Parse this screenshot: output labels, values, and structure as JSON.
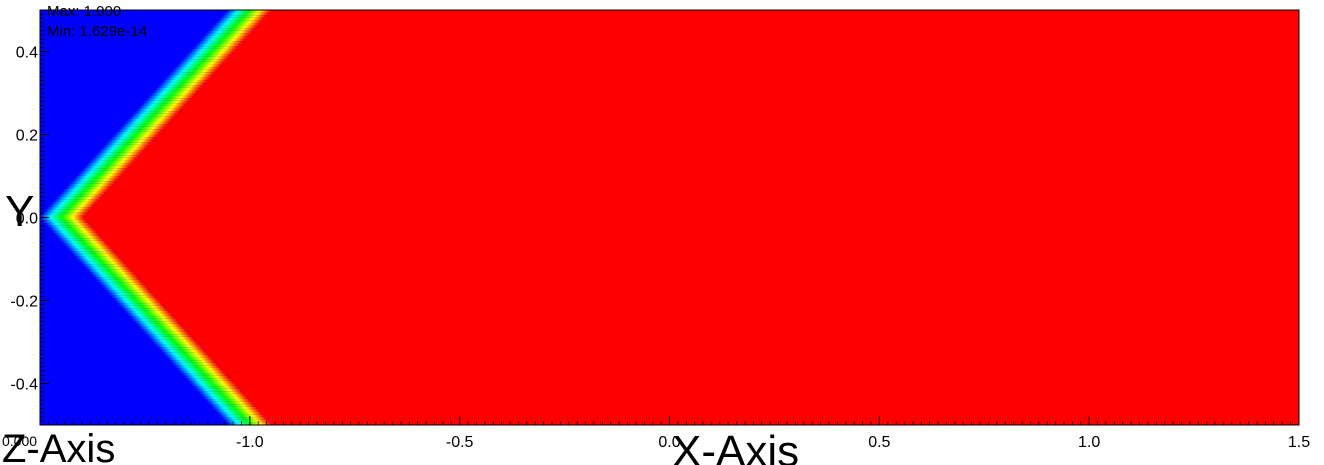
{
  "info": {
    "max_text": "Max: 1.000",
    "min_text": "Min: 1.629e-14",
    "corner_label": "0.000"
  },
  "chart_data": {
    "type": "heatmap",
    "xlabel": "X-Axis",
    "ylabel": "Y",
    "zlabel": "Z-Axis",
    "xlim": [
      -1.5,
      1.5
    ],
    "ylim": [
      -0.5,
      0.5
    ],
    "x_ticks": [
      "-1.0",
      "-0.5",
      "0.0",
      "0.5",
      "1.0",
      "1.5"
    ],
    "x_tick_values": [
      -1.0,
      -0.5,
      0.0,
      0.5,
      1.0,
      1.5
    ],
    "y_ticks": [
      "-0.4",
      "-0.2",
      "0.0",
      "0.2",
      "0.4"
    ],
    "y_tick_values": [
      -0.4,
      -0.2,
      0.0,
      0.2,
      0.4
    ],
    "value_range": [
      1.629e-14,
      1.0
    ],
    "colormap": [
      "#0000ff",
      "#00ffff",
      "#00ff00",
      "#ffff00",
      "#ff0000"
    ],
    "front_shape": "V-shaped interface: vertex near (-1.45, 0.0), arms reaching x = -1.0 at y = -0.5 and y = 0.5; value 0 (blue) to the left, 1 (red) to the right"
  }
}
